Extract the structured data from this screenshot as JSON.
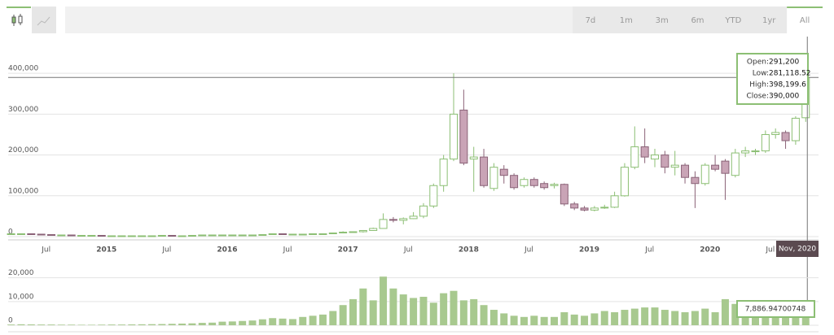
{
  "toolbar": {
    "ranges": [
      "7d",
      "1m",
      "3m",
      "6m",
      "YTD",
      "1yr",
      "All"
    ],
    "selected": 6
  },
  "chart_data": [
    {
      "type": "candlestick",
      "categories": [
        null,
        null,
        null,
        "Jul",
        null,
        null,
        null,
        null,
        null,
        "2015",
        null,
        null,
        null,
        null,
        null,
        "Jul",
        null,
        null,
        null,
        null,
        null,
        "2016",
        null,
        null,
        null,
        null,
        null,
        "Jul",
        null,
        null,
        null,
        null,
        null,
        "2017",
        null,
        null,
        null,
        null,
        null,
        "Jul",
        null,
        null,
        null,
        null,
        null,
        "2018",
        null,
        null,
        null,
        null,
        null,
        "Jul",
        null,
        null,
        null,
        null,
        null,
        "2019",
        null,
        null,
        null,
        null,
        null,
        "Jul",
        null,
        null,
        null,
        null,
        null,
        "2020",
        null,
        null,
        null,
        null,
        null,
        "Jul",
        null,
        null,
        null,
        null
      ],
      "open": [
        6000,
        7000,
        7000,
        6000,
        5000,
        4000,
        4000,
        3000,
        3000,
        3000,
        2000,
        2000,
        2000,
        2000,
        2000,
        2000,
        3000,
        2000,
        2000,
        3000,
        4000,
        4000,
        4000,
        4000,
        4000,
        4000,
        5000,
        7000,
        6000,
        6000,
        6000,
        7000,
        7000,
        10000,
        11000,
        12000,
        15000,
        20000,
        42000,
        40000,
        44000,
        50000,
        75000,
        125000,
        190000,
        310000,
        190000,
        195000,
        118000,
        165000,
        150000,
        125000,
        140000,
        130000,
        125000,
        128000,
        80000,
        70000,
        65000,
        70000,
        72000,
        100000,
        170000,
        220000,
        190000,
        200000,
        170000,
        175000,
        145000,
        130000,
        175000,
        185000,
        150000,
        205000,
        210000,
        210000,
        250000,
        255000,
        235000,
        291200
      ],
      "high": [
        8000,
        8000,
        8000,
        7000,
        6000,
        5000,
        5000,
        4000,
        4000,
        3000,
        3000,
        3000,
        3000,
        3000,
        3000,
        3000,
        3000,
        3000,
        3000,
        5000,
        5000,
        5000,
        5000,
        5000,
        5000,
        6000,
        8000,
        8000,
        7000,
        7000,
        8000,
        8000,
        10000,
        13000,
        13000,
        16000,
        22000,
        57000,
        48000,
        47000,
        60000,
        82000,
        130000,
        200000,
        400000,
        360000,
        220000,
        215000,
        180000,
        175000,
        155000,
        145000,
        145000,
        135000,
        132000,
        130000,
        85000,
        75000,
        75000,
        78000,
        110000,
        180000,
        270000,
        265000,
        215000,
        210000,
        210000,
        180000,
        160000,
        180000,
        200000,
        190000,
        215000,
        220000,
        215000,
        260000,
        265000,
        260000,
        295000,
        398199.6
      ],
      "low": [
        5000,
        6000,
        6000,
        5000,
        4000,
        3000,
        3000,
        3000,
        2000,
        2000,
        2000,
        2000,
        2000,
        2000,
        2000,
        2000,
        2000,
        2000,
        2000,
        3000,
        4000,
        4000,
        4000,
        4000,
        4000,
        4000,
        5000,
        6000,
        5000,
        6000,
        6000,
        7000,
        7000,
        9000,
        10000,
        10000,
        14000,
        20000,
        35000,
        30000,
        43000,
        45000,
        70000,
        110000,
        185000,
        175000,
        110000,
        120000,
        112000,
        130000,
        115000,
        120000,
        120000,
        115000,
        118000,
        75000,
        65000,
        62000,
        62000,
        68000,
        70000,
        98000,
        165000,
        180000,
        170000,
        155000,
        150000,
        130000,
        70000,
        125000,
        160000,
        90000,
        145000,
        195000,
        200000,
        205000,
        240000,
        215000,
        225000,
        281118.52
      ],
      "close": [
        7000,
        7000,
        6000,
        5000,
        4000,
        4000,
        3000,
        3000,
        3000,
        2000,
        2000,
        2000,
        2000,
        2000,
        2000,
        3000,
        2000,
        2000,
        3000,
        4000,
        4000,
        4000,
        4000,
        4000,
        4000,
        5000,
        7000,
        6000,
        6000,
        6000,
        7000,
        7000,
        9000,
        11000,
        12000,
        15000,
        20000,
        42000,
        40000,
        44000,
        50000,
        75000,
        125000,
        190000,
        300000,
        180000,
        195000,
        125000,
        170000,
        150000,
        120000,
        140000,
        125000,
        120000,
        128000,
        80000,
        70000,
        65000,
        70000,
        72000,
        100000,
        170000,
        220000,
        195000,
        200000,
        170000,
        175000,
        145000,
        130000,
        175000,
        165000,
        155000,
        205000,
        210000,
        210000,
        250000,
        255000,
        235000,
        290000,
        390000
      ],
      "up_color": "#8cbf74",
      "down_color": "#c9a4b6",
      "ylim": [
        0,
        490000
      ],
      "yticks": [
        0,
        {
          "value": 100000,
          "label": "100,000"
        },
        {
          "value": 200000,
          "label": "200,000"
        },
        {
          "value": 300000,
          "label": "300,000"
        },
        {
          "value": 400000,
          "label": "400,000"
        }
      ],
      "grid": true,
      "crosshair_label": "Nov, 2020",
      "tooltip": [
        {
          "label": "Open:",
          "value": "291,200"
        },
        {
          "label": "Low:",
          "value": "281,118.52"
        },
        {
          "label": "High:",
          "value": "398,199.6"
        },
        {
          "label": "Close:",
          "value": "390,000"
        }
      ]
    },
    {
      "type": "bar",
      "values": [
        300,
        400,
        350,
        300,
        300,
        250,
        250,
        200,
        200,
        250,
        300,
        300,
        350,
        400,
        450,
        500,
        600,
        700,
        800,
        1000,
        1100,
        1500,
        1600,
        1800,
        2000,
        2500,
        3000,
        2800,
        2600,
        3500,
        4000,
        4500,
        6000,
        8500,
        11000,
        15500,
        10500,
        20500,
        15500,
        13000,
        11500,
        12000,
        9500,
        13500,
        14500,
        10500,
        11000,
        8500,
        6500,
        5000,
        4000,
        3500,
        4000,
        3500,
        3500,
        5500,
        4500,
        4000,
        5000,
        6000,
        5500,
        6500,
        7000,
        7500,
        7500,
        6500,
        6000,
        5500,
        6000,
        7000,
        5500,
        11000,
        9000,
        7500,
        7000,
        6500,
        8000,
        8500,
        6500,
        7886.94700748
      ],
      "color": "#a8c98f",
      "ylim": [
        0,
        24000
      ],
      "yticks": [
        0,
        {
          "value": 10000,
          "label": "10,000"
        },
        {
          "value": 20000,
          "label": "20,000"
        }
      ],
      "grid": true,
      "annotation": "7,886.94700748"
    }
  ]
}
